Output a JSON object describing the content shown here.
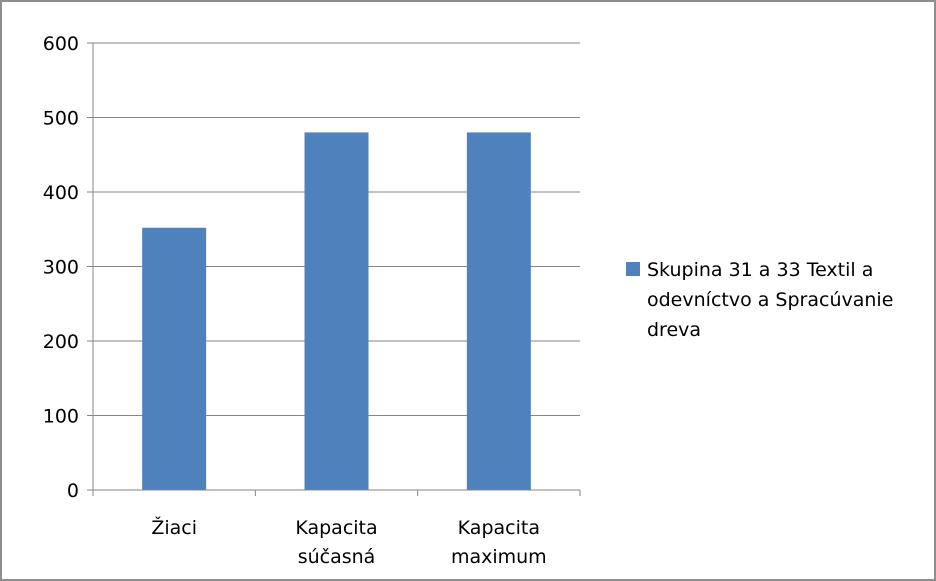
{
  "chart_data": {
    "type": "bar",
    "title": "",
    "xlabel": "",
    "ylabel": "",
    "categories": [
      [
        "Žiaci"
      ],
      [
        "Kapacita",
        "súčasná"
      ],
      [
        "Kapacita",
        "maximum"
      ]
    ],
    "series": [
      {
        "name": "Skupina 31 a 33 Textil a odevníctvo a Spracúvanie dreva",
        "values": [
          352,
          480,
          480
        ],
        "color": "#4f81bd"
      }
    ],
    "ylim": [
      0,
      600
    ],
    "yticks": [
      0,
      100,
      200,
      300,
      400,
      500,
      600
    ],
    "grid": true,
    "legend": {
      "position": "right",
      "lines": [
        "Skupina 31 a 33 Textil a",
        "odevníctvo a Spracúvanie",
        "dreva"
      ]
    }
  }
}
